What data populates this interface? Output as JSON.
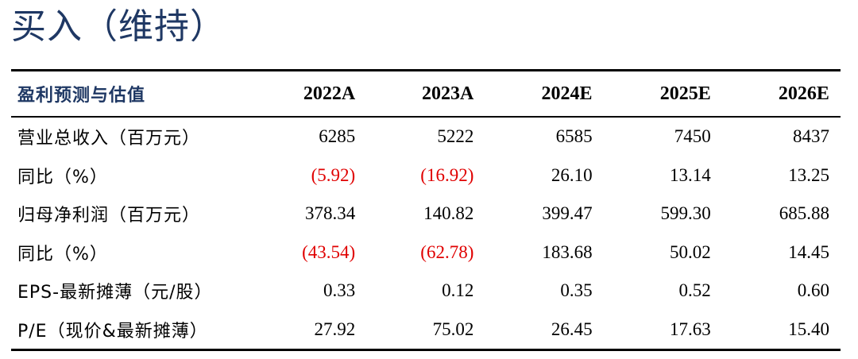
{
  "rating": "买入（维持）",
  "colors": {
    "title": "#1f3864",
    "negative": "#e00000",
    "rule": "#000000"
  },
  "table": {
    "header": {
      "label": "盈利预测与估值",
      "years": [
        "2022A",
        "2023A",
        "2024E",
        "2025E",
        "2026E"
      ]
    },
    "rows": [
      {
        "label": "营业总收入（百万元）",
        "values": [
          "6285",
          "5222",
          "6585",
          "7450",
          "8437"
        ],
        "negative": [
          false,
          false,
          false,
          false,
          false
        ]
      },
      {
        "label": "同比（%）",
        "values": [
          "(5.92)",
          "(16.92)",
          "26.10",
          "13.14",
          "13.25"
        ],
        "negative": [
          true,
          true,
          false,
          false,
          false
        ]
      },
      {
        "label": "归母净利润（百万元）",
        "values": [
          "378.34",
          "140.82",
          "399.47",
          "599.30",
          "685.88"
        ],
        "negative": [
          false,
          false,
          false,
          false,
          false
        ]
      },
      {
        "label": "同比（%）",
        "values": [
          "(43.54)",
          "(62.78)",
          "183.68",
          "50.02",
          "14.45"
        ],
        "negative": [
          true,
          true,
          false,
          false,
          false
        ]
      },
      {
        "label": "EPS-最新摊薄（元/股）",
        "values": [
          "0.33",
          "0.12",
          "0.35",
          "0.52",
          "0.60"
        ],
        "negative": [
          false,
          false,
          false,
          false,
          false
        ]
      },
      {
        "label": "P/E（现价&最新摊薄）",
        "values": [
          "27.92",
          "75.02",
          "26.45",
          "17.63",
          "15.40"
        ],
        "negative": [
          false,
          false,
          false,
          false,
          false
        ]
      }
    ]
  }
}
